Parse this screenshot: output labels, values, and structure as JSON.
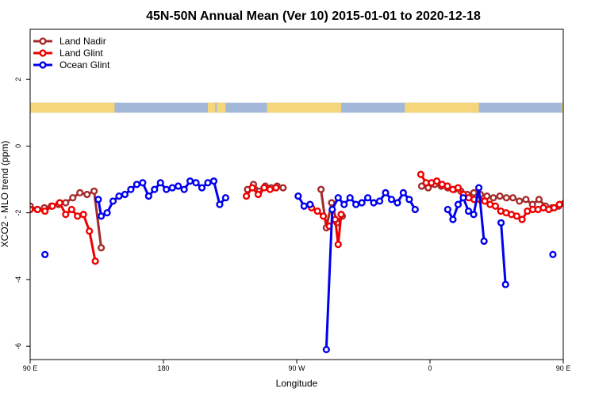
{
  "chart_data": {
    "type": "line",
    "title": "45N-50N Annual Mean (Ver 10)   2015-01-01 to 2020-12-18",
    "xlabel": "Longitude",
    "ylabel": "XCO2 - MLO trend (ppm)",
    "xlim": [
      90,
      450
    ],
    "ylim": [
      -6.4,
      3.5
    ],
    "x_ticks": [
      {
        "value": 90,
        "label": "90 E"
      },
      {
        "value": 180,
        "label": "180"
      },
      {
        "value": 270,
        "label": "90 W"
      },
      {
        "value": 360,
        "label": "0"
      },
      {
        "value": 450,
        "label": "90 E"
      },
      {
        "value": 540,
        "label": "180"
      }
    ],
    "y_ticks": [
      {
        "value": 2,
        "label": "2"
      },
      {
        "value": 0,
        "label": "0"
      },
      {
        "value": -2,
        "label": "-2"
      },
      {
        "value": -4,
        "label": "-4"
      },
      {
        "value": -6,
        "label": "-6"
      }
    ],
    "legend_position": "top-left",
    "land_ocean_strip": {
      "y_range": [
        1.0,
        1.3
      ],
      "land_color": "#f6d67a",
      "ocean_color": "#a3b8d8",
      "land_spans": [
        [
          90,
          147
        ],
        [
          210,
          215
        ],
        [
          216,
          222
        ],
        [
          250,
          300
        ],
        [
          343,
          393
        ],
        [
          449,
          530
        ]
      ]
    },
    "series": [
      {
        "name": "Land Nadir",
        "color": "#a52a2a",
        "points": [
          [
            90.0,
            -1.8
          ],
          [
            94.8,
            -1.9
          ],
          [
            99.6,
            -1.85
          ],
          [
            104.4,
            -1.8
          ],
          [
            109.2,
            -1.75
          ],
          [
            114.0,
            -1.7
          ],
          [
            118.8,
            -1.55
          ],
          [
            123.6,
            -1.4
          ],
          [
            128.4,
            -1.45
          ],
          [
            133.2,
            -1.35
          ],
          [
            138.0,
            -3.05
          ],
          [
            236.8,
            -1.3
          ],
          [
            240.8,
            -1.15
          ],
          [
            244.8,
            -1.35
          ],
          [
            248.8,
            -1.2
          ],
          [
            252.8,
            -1.25
          ],
          [
            256.8,
            -1.2
          ],
          [
            260.8,
            -1.25
          ],
          [
            286.4,
            -1.3
          ],
          [
            290.0,
            -2.45
          ],
          [
            293.6,
            -1.7
          ],
          [
            297.2,
            -2.3
          ],
          [
            300.8,
            -2.1
          ],
          [
            354.4,
            -1.2
          ],
          [
            358.8,
            -1.25
          ],
          [
            363.2,
            -1.15
          ],
          [
            367.6,
            -1.2
          ],
          [
            372.0,
            -1.25
          ],
          [
            376.4,
            -1.3
          ],
          [
            380.8,
            -1.35
          ],
          [
            385.2,
            -1.45
          ],
          [
            389.6,
            -1.4
          ],
          [
            394.0,
            -1.45
          ],
          [
            398.4,
            -1.5
          ],
          [
            402.8,
            -1.55
          ],
          [
            407.2,
            -1.5
          ],
          [
            411.6,
            -1.55
          ],
          [
            416.0,
            -1.55
          ],
          [
            420.4,
            -1.65
          ],
          [
            424.8,
            -1.6
          ],
          [
            429.2,
            -1.75
          ],
          [
            433.6,
            -1.6
          ],
          [
            438.0,
            -1.8
          ],
          [
            442.4,
            -1.85
          ],
          [
            446.8,
            -1.8
          ],
          [
            451.2,
            -1.75
          ],
          [
            455.6,
            -1.65
          ],
          [
            460.0,
            -1.55
          ],
          [
            464.4,
            -1.4
          ],
          [
            468.8,
            -1.45
          ],
          [
            473.2,
            -1.35
          ],
          [
            477.6,
            -3.05
          ]
        ]
      },
      {
        "name": "Land Glint",
        "color": "#ee0000",
        "points": [
          [
            90.0,
            -1.9
          ],
          [
            95.0,
            -1.9
          ],
          [
            100.0,
            -1.95
          ],
          [
            105.0,
            -1.8
          ],
          [
            110.0,
            -1.7
          ],
          [
            114.0,
            -2.05
          ],
          [
            118.0,
            -1.9
          ],
          [
            122.0,
            -2.1
          ],
          [
            126.0,
            -2.05
          ],
          [
            130.0,
            -2.55
          ],
          [
            134.0,
            -3.45
          ],
          [
            236.0,
            -1.5
          ],
          [
            240.0,
            -1.25
          ],
          [
            244.0,
            -1.45
          ],
          [
            248.0,
            -1.25
          ],
          [
            252.0,
            -1.3
          ],
          [
            256.0,
            -1.25
          ],
          [
            280.0,
            -1.85
          ],
          [
            284.0,
            -1.95
          ],
          [
            288.0,
            -2.1
          ],
          [
            292.0,
            -2.4
          ],
          [
            296.0,
            -2.2
          ],
          [
            298.0,
            -2.95
          ],
          [
            300.0,
            -2.05
          ],
          [
            353.8,
            -0.85
          ],
          [
            357.4,
            -1.1
          ],
          [
            361.0,
            -1.1
          ],
          [
            364.6,
            -1.05
          ],
          [
            368.2,
            -1.15
          ],
          [
            371.8,
            -1.2
          ],
          [
            375.4,
            -1.3
          ],
          [
            379.0,
            -1.25
          ],
          [
            382.6,
            -1.45
          ],
          [
            386.2,
            -1.55
          ],
          [
            389.8,
            -1.6
          ],
          [
            393.4,
            -1.6
          ],
          [
            397.0,
            -1.65
          ],
          [
            400.6,
            -1.75
          ],
          [
            404.2,
            -1.8
          ],
          [
            407.8,
            -1.95
          ],
          [
            411.4,
            -2.0
          ],
          [
            415.0,
            -2.05
          ],
          [
            418.6,
            -2.1
          ],
          [
            422.2,
            -2.2
          ],
          [
            425.8,
            -1.95
          ],
          [
            429.4,
            -1.9
          ],
          [
            433.0,
            -1.9
          ],
          [
            436.6,
            -1.85
          ],
          [
            440.2,
            -1.9
          ],
          [
            443.8,
            -1.85
          ],
          [
            447.4,
            -1.75
          ],
          [
            451.0,
            -1.7
          ],
          [
            454.6,
            -2.05
          ],
          [
            458.2,
            -1.9
          ],
          [
            461.8,
            -2.0
          ],
          [
            465.4,
            -2.55
          ],
          [
            469.0,
            -3.45
          ]
        ]
      },
      {
        "name": "Ocean Glint",
        "color": "#0000ee",
        "points": [
          [
            136.0,
            -1.6
          ],
          [
            138.0,
            -2.1
          ],
          [
            142.0,
            -2.0
          ],
          [
            146.0,
            -1.65
          ],
          [
            150.0,
            -1.5
          ],
          [
            154.0,
            -1.45
          ],
          [
            158.0,
            -1.3
          ],
          [
            162.0,
            -1.15
          ],
          [
            166.0,
            -1.1
          ],
          [
            170.0,
            -1.5
          ],
          [
            174.0,
            -1.3
          ],
          [
            178.0,
            -1.1
          ],
          [
            182.0,
            -1.3
          ],
          [
            186.0,
            -1.25
          ],
          [
            190.0,
            -1.2
          ],
          [
            194.0,
            -1.3
          ],
          [
            198.0,
            -1.05
          ],
          [
            202.0,
            -1.1
          ],
          [
            206.0,
            -1.25
          ],
          [
            210.0,
            -1.1
          ],
          [
            214.0,
            -1.05
          ],
          [
            218.0,
            -1.75
          ],
          [
            222.0,
            -1.55
          ],
          [
            271.0,
            -1.5
          ],
          [
            275.0,
            -1.8
          ],
          [
            279.0,
            -1.75
          ],
          [
            290.0,
            -6.1
          ],
          [
            294.0,
            -1.9
          ],
          [
            298.0,
            -1.55
          ],
          [
            302.0,
            -1.75
          ],
          [
            306.0,
            -1.55
          ],
          [
            310.0,
            -1.75
          ],
          [
            314.0,
            -1.7
          ],
          [
            318.0,
            -1.55
          ],
          [
            322.0,
            -1.7
          ],
          [
            326.0,
            -1.65
          ],
          [
            330.0,
            -1.4
          ],
          [
            334.0,
            -1.6
          ],
          [
            338.0,
            -1.7
          ],
          [
            342.0,
            -1.4
          ],
          [
            346.0,
            -1.6
          ],
          [
            350.0,
            -1.9
          ],
          [
            372.0,
            -1.9
          ],
          [
            375.5,
            -2.2
          ],
          [
            379.0,
            -1.75
          ],
          [
            382.5,
            -1.55
          ],
          [
            386.0,
            -1.95
          ],
          [
            389.5,
            -2.05
          ],
          [
            393.0,
            -1.25
          ],
          [
            396.5,
            -2.85
          ],
          [
            408.0,
            -2.3
          ],
          [
            411.0,
            -4.15
          ],
          [
            466.0,
            -1.6
          ],
          [
            470.0,
            -2.05
          ],
          [
            474.0,
            -1.95
          ],
          [
            478.0,
            -1.65
          ],
          [
            482.0,
            -1.5
          ],
          [
            486.0,
            -1.45
          ],
          [
            490.0,
            -1.25
          ],
          [
            494.0,
            -1.15
          ],
          [
            498.0,
            -1.45
          ]
        ]
      }
    ],
    "isolated_points": [
      {
        "series": "Ocean Glint",
        "x": 100.0,
        "y": -3.25
      },
      {
        "series": "Ocean Glint",
        "x": 443.0,
        "y": -3.25
      }
    ]
  }
}
